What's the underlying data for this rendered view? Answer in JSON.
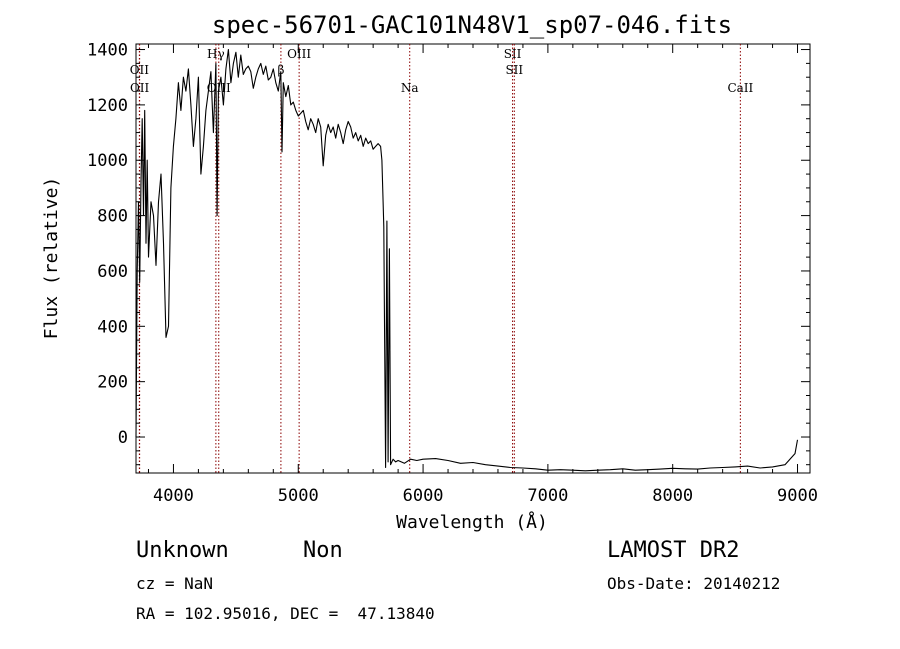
{
  "chart_data": {
    "type": "line",
    "title": "spec-56701-GAC101N48V1_sp07-046.fits",
    "xlabel": "Wavelength (Å)",
    "ylabel": "Flux (relative)",
    "xlim": [
      3700,
      9100
    ],
    "ylim": [
      -130,
      1420
    ],
    "x_ticks": [
      4000,
      5000,
      6000,
      7000,
      8000,
      9000
    ],
    "y_ticks": [
      0,
      200,
      400,
      600,
      800,
      1000,
      1200,
      1400
    ],
    "grid": false,
    "line_color": "#000000",
    "marker_color": "#8b0000",
    "series": [
      {
        "x": [
          3700,
          3710,
          3720,
          3730,
          3740,
          3750,
          3760,
          3770,
          3780,
          3790,
          3800,
          3820,
          3840,
          3860,
          3880,
          3900,
          3920,
          3940,
          3960,
          3980,
          4000,
          4020,
          4040,
          4060,
          4080,
          4100,
          4120,
          4140,
          4160,
          4180,
          4200,
          4220,
          4240,
          4260,
          4280,
          4300,
          4320,
          4340,
          4350,
          4360,
          4380,
          4400,
          4420,
          4440,
          4460,
          4480,
          4500,
          4520,
          4540,
          4560,
          4580,
          4600,
          4620,
          4640,
          4660,
          4680,
          4700,
          4720,
          4740,
          4760,
          4780,
          4800,
          4820,
          4840,
          4860,
          4870,
          4880,
          4900,
          4920,
          4940,
          4960,
          4980,
          5000,
          5020,
          5040,
          5060,
          5080,
          5100,
          5120,
          5140,
          5160,
          5180,
          5200,
          5220,
          5240,
          5260,
          5280,
          5300,
          5320,
          5340,
          5360,
          5380,
          5400,
          5420,
          5440,
          5460,
          5480,
          5500,
          5520,
          5540,
          5560,
          5580,
          5600,
          5620,
          5640,
          5660,
          5670,
          5680,
          5685,
          5690,
          5700,
          5710,
          5720,
          5730,
          5740,
          5760,
          5780,
          5800,
          5850,
          5900,
          5950,
          6000,
          6100,
          6200,
          6300,
          6400,
          6500,
          6600,
          6700,
          6800,
          6900,
          7000,
          7100,
          7200,
          7300,
          7400,
          7500,
          7600,
          7700,
          7800,
          7900,
          8000,
          8100,
          8200,
          8300,
          8400,
          8500,
          8600,
          8700,
          8800,
          8900,
          8960,
          8980,
          9000
        ],
        "y": [
          0,
          600,
          850,
          560,
          920,
          1150,
          800,
          1180,
          700,
          1000,
          650,
          850,
          800,
          620,
          850,
          950,
          700,
          360,
          400,
          900,
          1050,
          1150,
          1280,
          1180,
          1300,
          1250,
          1330,
          1200,
          1050,
          1150,
          1300,
          950,
          1050,
          1180,
          1250,
          1320,
          1100,
          1350,
          800,
          1250,
          1300,
          1200,
          1330,
          1400,
          1280,
          1350,
          1390,
          1300,
          1380,
          1310,
          1330,
          1340,
          1320,
          1260,
          1300,
          1330,
          1350,
          1310,
          1340,
          1290,
          1300,
          1330,
          1280,
          1250,
          1320,
          1030,
          1280,
          1230,
          1270,
          1200,
          1210,
          1180,
          1160,
          1170,
          1180,
          1140,
          1110,
          1150,
          1130,
          1100,
          1150,
          1120,
          980,
          1090,
          1130,
          1100,
          1120,
          1080,
          1130,
          1100,
          1060,
          1110,
          1140,
          1120,
          1080,
          1100,
          1070,
          1090,
          1050,
          1080,
          1060,
          1070,
          1040,
          1050,
          1060,
          1050,
          1000,
          850,
          760,
          460,
          -110,
          780,
          -90,
          680,
          -100,
          -80,
          -90,
          -85,
          -95,
          -80,
          -85,
          -80,
          -78,
          -85,
          -95,
          -92,
          -100,
          -105,
          -110,
          -112,
          -115,
          -120,
          -118,
          -120,
          -122,
          -120,
          -118,
          -115,
          -120,
          -118,
          -116,
          -113,
          -115,
          -116,
          -112,
          -110,
          -108,
          -105,
          -112,
          -108,
          -100,
          -70,
          -60,
          -10
        ]
      }
    ],
    "lines": [
      {
        "label": "OII",
        "x": 3727
      },
      {
        "label": "OII",
        "x": 3729
      },
      {
        "label": "Hγ",
        "x": 4340
      },
      {
        "label": "OIII",
        "x": 4363
      },
      {
        "label": "β",
        "x": 4861
      },
      {
        "label": "OIII",
        "x": 5007
      },
      {
        "label": "Na",
        "x": 5893
      },
      {
        "label": "SII",
        "x": 6717
      },
      {
        "label": "SII",
        "x": 6731
      },
      {
        "label": "CaII",
        "x": 8542
      }
    ]
  },
  "info": {
    "class_text": "Unknown",
    "subclass_text": "Non",
    "cz_text": "cz = NaN",
    "radec_text": "RA = 102.95016, DEC =  47.13840",
    "survey_text": "LAMOST DR2",
    "obsdate_text": "Obs-Date: 20140212"
  }
}
